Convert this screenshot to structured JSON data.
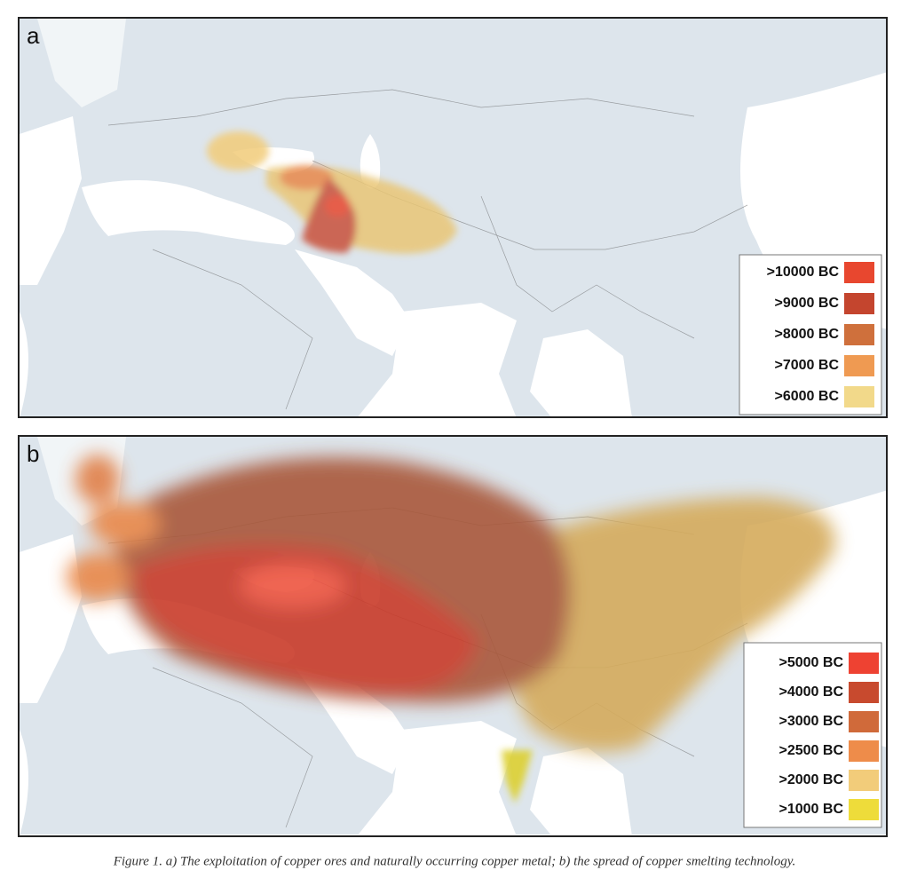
{
  "panels": [
    {
      "label": "a",
      "legend": [
        {
          "label": ">10000 BC",
          "color": "#e8472f"
        },
        {
          "label": ">9000 BC",
          "color": "#c4452e"
        },
        {
          "label": ">8000 BC",
          "color": "#cf703c"
        },
        {
          "label": ">7000 BC",
          "color": "#ef9a52"
        },
        {
          "label": ">6000 BC",
          "color": "#f2d98a"
        }
      ]
    },
    {
      "label": "b",
      "legend": [
        {
          "label": ">5000 BC",
          "color": "#ee4232"
        },
        {
          "label": ">4000 BC",
          "color": "#c84a2e"
        },
        {
          "label": ">3000 BC",
          "color": "#d06a3a"
        },
        {
          "label": ">2500 BC",
          "color": "#ee8c4a"
        },
        {
          "label": ">2000 BC",
          "color": "#f2cc7a"
        },
        {
          "label": ">1000 BC",
          "color": "#eedc3a"
        }
      ]
    }
  ],
  "caption": "Figure 1.  a) The exploitation of copper ores and naturally occurring copper metal; b) the spread of copper smelting technology."
}
